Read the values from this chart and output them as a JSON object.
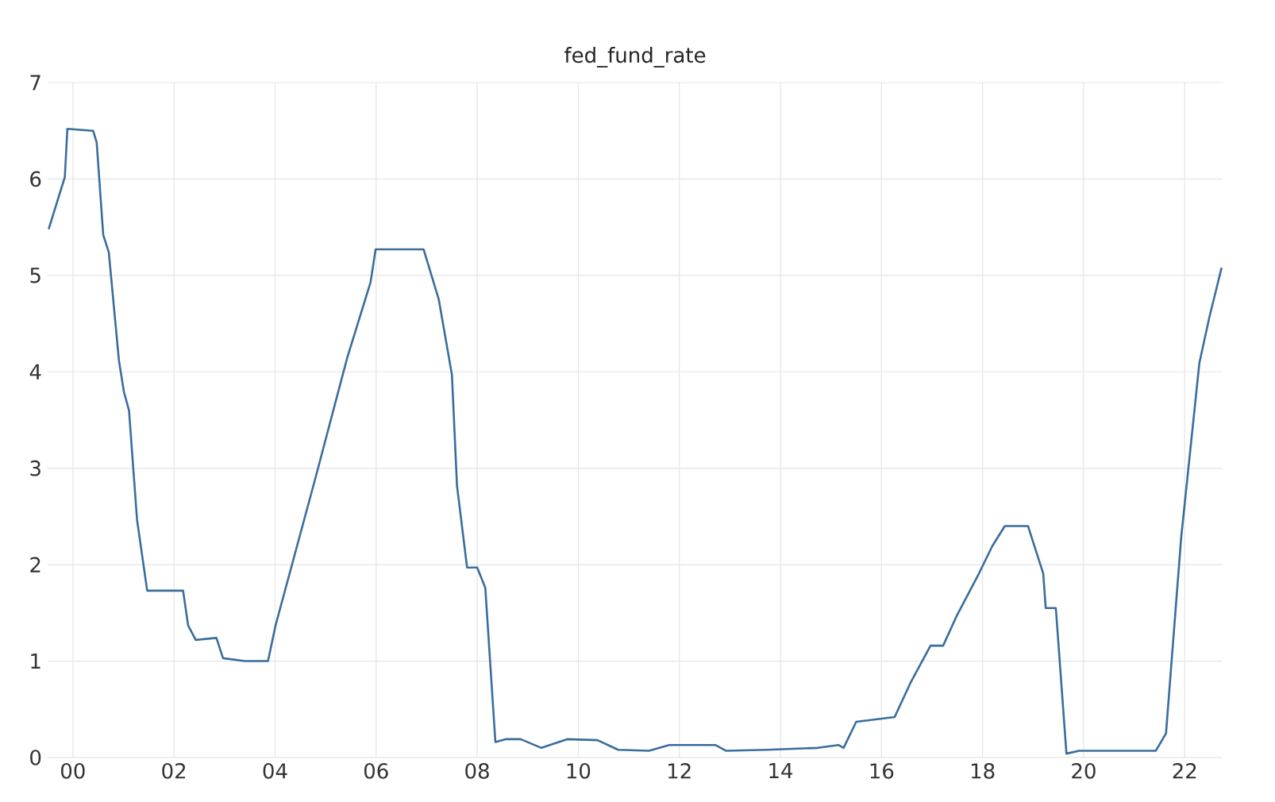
{
  "chart_data": {
    "type": "line",
    "title": "fed_fund_rate",
    "series": [
      {
        "color": "#3a6d9c",
        "x": [
          1999.52,
          1999.84,
          1999.89,
          2000.4,
          2000.47,
          2000.6,
          2000.71,
          2000.91,
          2001.01,
          2001.11,
          2001.27,
          2001.47,
          2002.18,
          2002.28,
          2002.43,
          2002.84,
          2002.97,
          2003.4,
          2003.86,
          2004.01,
          2004.82,
          2005.43,
          2005.89,
          2005.99,
          2006.94,
          2007.24,
          2007.5,
          2007.6,
          2007.8,
          2008.0,
          2008.16,
          2008.36,
          2008.56,
          2008.86,
          2009.27,
          2009.78,
          2010.38,
          2010.79,
          2011.4,
          2011.8,
          2012.71,
          2012.92,
          2013.73,
          2014.74,
          2015.15,
          2015.25,
          2015.5,
          2016.26,
          2016.57,
          2016.97,
          2017.22,
          2017.48,
          2017.93,
          2018.19,
          2018.44,
          2018.9,
          2019.2,
          2019.25,
          2019.45,
          2019.66,
          2019.91,
          2021.43,
          2021.63,
          2021.93,
          2022.29,
          2022.49,
          2022.73
        ],
        "values": [
          5.48,
          6.02,
          6.52,
          6.5,
          6.38,
          5.42,
          5.24,
          4.12,
          3.79,
          3.6,
          2.46,
          1.73,
          1.73,
          1.37,
          1.22,
          1.24,
          1.03,
          1.0,
          1.0,
          1.37,
          2.94,
          4.15,
          4.93,
          5.27,
          5.27,
          4.75,
          3.97,
          2.82,
          1.97,
          1.97,
          1.76,
          0.16,
          0.19,
          0.19,
          0.1,
          0.19,
          0.18,
          0.08,
          0.07,
          0.13,
          0.13,
          0.07,
          0.08,
          0.1,
          0.13,
          0.1,
          0.37,
          0.42,
          0.77,
          1.16,
          1.16,
          1.46,
          1.91,
          2.19,
          2.4,
          2.4,
          1.91,
          1.55,
          1.55,
          0.04,
          0.07,
          0.07,
          0.25,
          2.28,
          4.09,
          4.57,
          5.08
        ]
      }
    ],
    "xlim": [
      1999.5,
      2022.75
    ],
    "xticks": [
      {
        "value": 2000,
        "label": "00"
      },
      {
        "value": 2002,
        "label": "02"
      },
      {
        "value": 2004,
        "label": "04"
      },
      {
        "value": 2006,
        "label": "06"
      },
      {
        "value": 2008,
        "label": "08"
      },
      {
        "value": 2010,
        "label": "10"
      },
      {
        "value": 2012,
        "label": "12"
      },
      {
        "value": 2014,
        "label": "14"
      },
      {
        "value": 2016,
        "label": "16"
      },
      {
        "value": 2018,
        "label": "18"
      },
      {
        "value": 2020,
        "label": "20"
      },
      {
        "value": 2022,
        "label": "22"
      }
    ],
    "ylim": [
      0,
      7
    ],
    "yticks": [
      0,
      1,
      2,
      3,
      4,
      5,
      6,
      7
    ],
    "grid": true,
    "marker": "none",
    "line_style": "solid"
  }
}
